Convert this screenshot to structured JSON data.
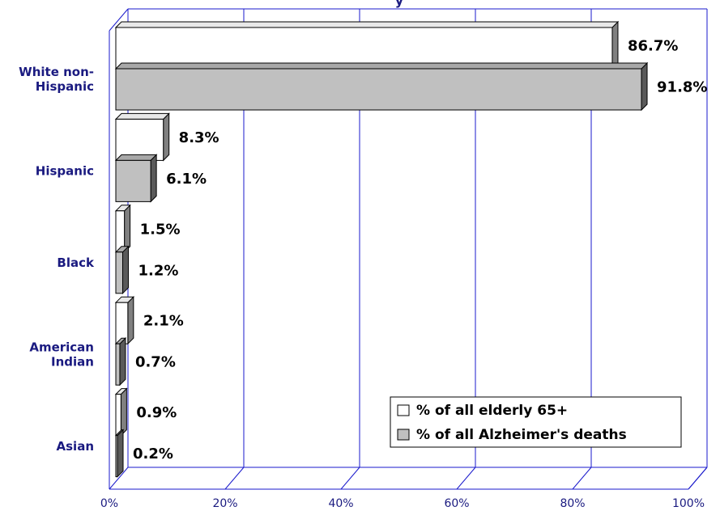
{
  "chart_data": {
    "type": "bar",
    "orientation": "horizontal",
    "title_fragment": "y",
    "categories": [
      "White non-Hispanic",
      "Hispanic",
      "Black",
      "American Indian",
      "Asian"
    ],
    "category_lines": [
      [
        "White non-",
        "Hispanic"
      ],
      [
        "Hispanic"
      ],
      [
        "Black"
      ],
      [
        "American",
        "Indian"
      ],
      [
        "Asian"
      ]
    ],
    "series": [
      {
        "name": "% of all elderly 65+",
        "values": [
          86.7,
          8.3,
          1.5,
          2.1,
          0.9
        ],
        "labels": [
          "86.7%",
          "8.3%",
          "1.5%",
          "2.1%",
          "0.9%"
        ],
        "color": "#ffffff"
      },
      {
        "name": "% of all Alzheimer's deaths",
        "values": [
          91.8,
          6.1,
          1.2,
          0.7,
          0.2
        ],
        "labels": [
          "91.8%",
          "6.1%",
          "1.2%",
          "0.7%",
          "0.2%"
        ],
        "color": "#c0c0c0"
      }
    ],
    "xlim": [
      0,
      100
    ],
    "x_ticks": [
      0,
      20,
      40,
      60,
      80,
      100
    ],
    "x_tick_labels": [
      "0%",
      "20%",
      "40%",
      "60%",
      "80%",
      "100%"
    ],
    "grid": true,
    "legend_position": "bottom-right",
    "colors": {
      "frame": "#1a1acc",
      "axis_text": "#1a1a80",
      "bar_side": "#808080",
      "bar_side_dark": "#5a5a5a",
      "bar_outline": "#000000"
    }
  }
}
